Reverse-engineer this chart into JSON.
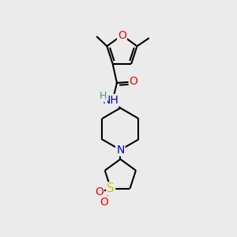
{
  "background_color": "#ebebeb",
  "atom_colors": {
    "C": "#000000",
    "N": "#0000cc",
    "O": "#ff0000",
    "S": "#cccc00",
    "H": "#5a8a8a"
  },
  "bond_color": "#000000",
  "bond_width": 1.5
}
